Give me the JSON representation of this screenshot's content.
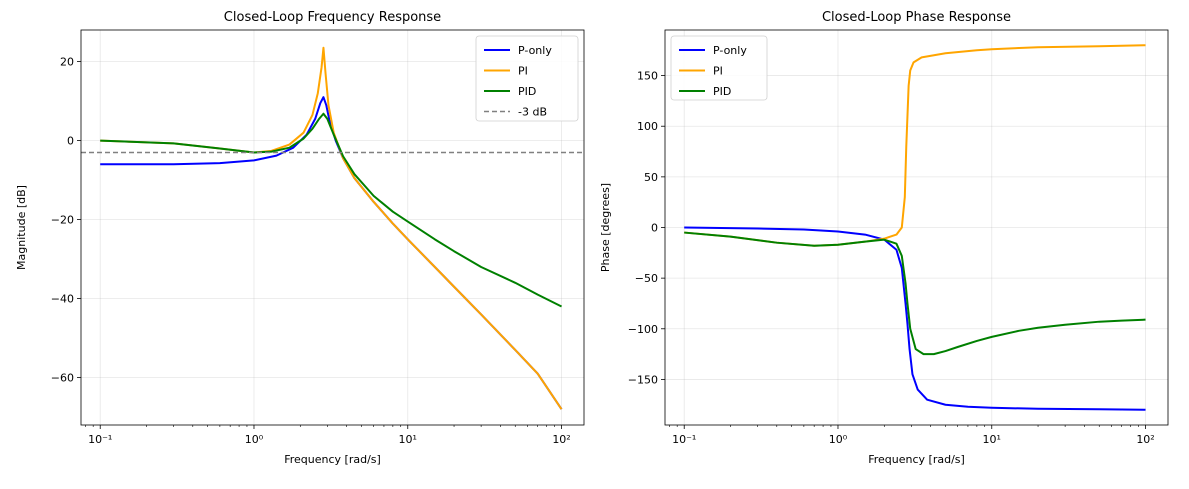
{
  "chart_data": [
    {
      "type": "line",
      "title": "Closed-Loop Frequency Response",
      "xlabel": "Frequency [rad/s]",
      "ylabel": "Magnitude [dB]",
      "xscale": "log",
      "xlim": [
        0.075,
        140
      ],
      "ylim": [
        -72,
        28
      ],
      "yticks": [
        20,
        0,
        -20,
        -40,
        -60
      ],
      "ytick_labels": [
        "20",
        "0",
        "−20",
        "−40",
        "−60"
      ],
      "xticks": [
        0.1,
        1,
        10,
        100
      ],
      "xtick_labels": [
        "10⁻¹",
        "10⁰",
        "10¹",
        "10²"
      ],
      "grid": true,
      "legend": "top-right",
      "series": [
        {
          "name": "P-only",
          "color": "#0000ff",
          "x": [
            0.1,
            0.3,
            0.6,
            1.0,
            1.4,
            1.8,
            2.2,
            2.5,
            2.7,
            2.83,
            2.95,
            3.1,
            3.4,
            3.8,
            4.5,
            6,
            8,
            10,
            15,
            20,
            30,
            50,
            70,
            100
          ],
          "y": [
            -6.0,
            -6.0,
            -5.7,
            -5.0,
            -3.8,
            -1.8,
            1.5,
            5.5,
            9.5,
            11.0,
            9.0,
            5.0,
            0.0,
            -4.5,
            -9.5,
            -15.5,
            -21.0,
            -25.0,
            -32.0,
            -37.0,
            -44.0,
            -53.0,
            -59.0,
            -68.0
          ]
        },
        {
          "name": "PI",
          "color": "#ffa500",
          "x": [
            0.1,
            0.3,
            0.6,
            1.0,
            1.3,
            1.7,
            2.1,
            2.4,
            2.6,
            2.75,
            2.83,
            2.92,
            3.05,
            3.3,
            3.8,
            4.5,
            6,
            8,
            10,
            15,
            20,
            30,
            50,
            70,
            100
          ],
          "y": [
            0.0,
            -0.7,
            -2.0,
            -3.0,
            -2.6,
            -1.0,
            2.0,
            6.5,
            12.0,
            18.5,
            23.5,
            17.0,
            9.0,
            2.0,
            -4.5,
            -9.5,
            -15.5,
            -21.0,
            -25.0,
            -32.0,
            -37.0,
            -44.0,
            -53.0,
            -59.0,
            -68.0
          ]
        },
        {
          "name": "PID",
          "color": "#008000",
          "x": [
            0.1,
            0.3,
            0.6,
            1.0,
            1.3,
            1.7,
            2.1,
            2.4,
            2.65,
            2.83,
            3.0,
            3.3,
            3.8,
            4.5,
            6,
            8,
            10,
            15,
            20,
            30,
            50,
            70,
            100
          ],
          "y": [
            0.0,
            -0.7,
            -2.0,
            -3.0,
            -2.8,
            -1.8,
            0.5,
            3.0,
            5.5,
            6.8,
            5.5,
            1.5,
            -4.0,
            -8.5,
            -14.0,
            -18.0,
            -20.5,
            -25.0,
            -28.0,
            -32.0,
            -36.0,
            -39.0,
            -42.0
          ]
        },
        {
          "name": "-3 dB",
          "color": "#808080",
          "dashed": true,
          "x": [
            0.075,
            140
          ],
          "y": [
            -3,
            -3
          ]
        }
      ]
    },
    {
      "type": "line",
      "title": "Closed-Loop Phase Response",
      "xlabel": "Frequency [rad/s]",
      "ylabel": "Phase [degrees]",
      "xscale": "log",
      "xlim": [
        0.075,
        140
      ],
      "ylim": [
        -195,
        195
      ],
      "yticks": [
        150,
        100,
        50,
        0,
        -50,
        -100,
        -150
      ],
      "ytick_labels": [
        "150",
        "100",
        "50",
        "0",
        "−50",
        "−100",
        "−150"
      ],
      "xticks": [
        0.1,
        1,
        10,
        100
      ],
      "xtick_labels": [
        "10⁻¹",
        "10⁰",
        "10¹",
        "10²"
      ],
      "grid": true,
      "legend": "top-left",
      "series": [
        {
          "name": "P-only",
          "color": "#0000ff",
          "x": [
            0.1,
            0.3,
            0.6,
            1.0,
            1.5,
            2.0,
            2.4,
            2.6,
            2.75,
            2.83,
            2.92,
            3.05,
            3.3,
            3.8,
            5,
            7,
            10,
            20,
            50,
            100
          ],
          "y": [
            0,
            -1,
            -2,
            -4,
            -7,
            -12,
            -22,
            -40,
            -75,
            -95,
            -120,
            -145,
            -160,
            -170,
            -175,
            -177,
            -178,
            -179,
            -179.5,
            -180
          ]
        },
        {
          "name": "PI",
          "color": "#ffa500",
          "x": [
            0.1,
            0.2,
            0.4,
            0.7,
            1.0,
            1.5,
            2.0,
            2.4,
            2.6,
            2.72,
            2.78,
            2.83,
            2.88,
            2.95,
            3.1,
            3.5,
            5,
            8,
            10,
            20,
            50,
            100
          ],
          "y": [
            -5,
            -9,
            -15,
            -18,
            -17,
            -14,
            -11,
            -7,
            0,
            30,
            80,
            110,
            140,
            155,
            163,
            168,
            172,
            175,
            176,
            178,
            179,
            180
          ]
        },
        {
          "name": "PID",
          "color": "#008000",
          "x": [
            0.1,
            0.2,
            0.4,
            0.7,
            1.0,
            1.5,
            2.0,
            2.4,
            2.6,
            2.75,
            2.83,
            2.95,
            3.2,
            3.6,
            4.2,
            5,
            6,
            8,
            10,
            15,
            20,
            30,
            50,
            70,
            100
          ],
          "y": [
            -5,
            -9,
            -15,
            -18,
            -17,
            -14,
            -12,
            -16,
            -28,
            -55,
            -75,
            -100,
            -120,
            -125,
            -125,
            -122,
            -118,
            -112,
            -108,
            -102,
            -99,
            -96,
            -93,
            -92,
            -91
          ]
        }
      ]
    }
  ]
}
